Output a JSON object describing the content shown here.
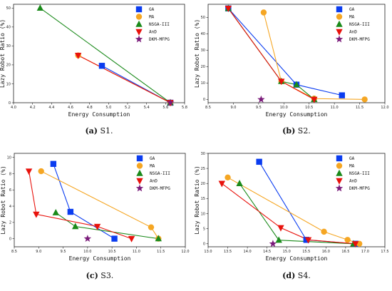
{
  "colors": {
    "GA": "#0a3cf0",
    "MA": "#f5a623",
    "NSGA-III": "#1a8a1a",
    "AnD": "#e8120c",
    "DKM-MFPG": "#7a1b7a"
  },
  "chart_data": [
    {
      "type": "line",
      "caption_label": "(a)",
      "caption_text": "S1.",
      "xlabel": "Energy Consumption",
      "ylabel": "Lazy Robot Ratio (%)",
      "xlim": [
        4.0,
        5.8
      ],
      "ylim": [
        0,
        52
      ],
      "xticks": [
        "4.0",
        "4.2",
        "4.4",
        "4.6",
        "4.8",
        "5.0",
        "5.2",
        "5.4",
        "5.6",
        "5.8"
      ],
      "yticks": [
        "0",
        "10",
        "20",
        "30",
        "40",
        "50"
      ],
      "series": [
        {
          "name": "GA",
          "marker": "square",
          "points": [
            [
              4.93,
              19.5
            ],
            [
              5.65,
              0
            ]
          ]
        },
        {
          "name": "MA",
          "marker": "circle",
          "points": [
            [
              4.68,
              25
            ],
            [
              5.65,
              0
            ]
          ]
        },
        {
          "name": "NSGA-III",
          "marker": "triangle-up",
          "points": [
            [
              4.28,
              50
            ],
            [
              5.65,
              0
            ]
          ]
        },
        {
          "name": "AnD",
          "marker": "triangle-down",
          "points": [
            [
              4.68,
              25
            ],
            [
              5.65,
              0
            ]
          ]
        },
        {
          "name": "DKM-MFPG",
          "marker": "star",
          "points": [
            [
              5.65,
              0
            ]
          ]
        }
      ]
    },
    {
      "type": "line",
      "caption_label": "(b)",
      "caption_text": "S2.",
      "xlabel": "Energy Consumption",
      "ylabel": "Lazy Robot Ratio (%)",
      "xlim": [
        8.5,
        12.0
      ],
      "ylim": [
        -2,
        58
      ],
      "xticks": [
        "8.5",
        "9.0",
        "9.5",
        "10.0",
        "10.5",
        "11.0",
        "11.5",
        "12.0"
      ],
      "yticks": [
        "0",
        "10",
        "20",
        "30",
        "40",
        "50"
      ],
      "series": [
        {
          "name": "GA",
          "marker": "square",
          "points": [
            [
              8.9,
              55.5
            ],
            [
              10.25,
              9
            ],
            [
              11.15,
              2.5
            ]
          ]
        },
        {
          "name": "MA",
          "marker": "circle",
          "points": [
            [
              9.6,
              53
            ],
            [
              9.95,
              11
            ],
            [
              10.6,
              0.5
            ],
            [
              11.6,
              0
            ]
          ]
        },
        {
          "name": "NSGA-III",
          "marker": "triangle-up",
          "points": [
            [
              8.9,
              55.5
            ],
            [
              9.95,
              11
            ],
            [
              10.25,
              9
            ],
            [
              10.6,
              0
            ]
          ]
        },
        {
          "name": "AnD",
          "marker": "triangle-down",
          "points": [
            [
              8.9,
              55.5
            ],
            [
              9.95,
              11
            ],
            [
              10.6,
              0
            ]
          ]
        },
        {
          "name": "DKM-MFPG",
          "marker": "star",
          "points": [
            [
              9.55,
              0
            ]
          ]
        }
      ]
    },
    {
      "type": "line",
      "caption_label": "(c)",
      "caption_text": "S3.",
      "xlabel": "Energy Consumption",
      "ylabel": "Lazy Robot Ratio (%)",
      "xlim": [
        8.5,
        12.0
      ],
      "ylim": [
        -1,
        10.5
      ],
      "xticks": [
        "8.5",
        "9.0",
        "9.5",
        "10.0",
        "10.5",
        "11.0",
        "11.5",
        "12.0"
      ],
      "yticks": [
        "0",
        "2",
        "4",
        "6",
        "8",
        "10"
      ],
      "series": [
        {
          "name": "GA",
          "marker": "square",
          "points": [
            [
              9.3,
              9.2
            ],
            [
              9.65,
              3.3
            ],
            [
              10.55,
              0
            ]
          ]
        },
        {
          "name": "MA",
          "marker": "circle",
          "points": [
            [
              9.05,
              8.3
            ],
            [
              11.3,
              1.4
            ],
            [
              11.45,
              0
            ]
          ]
        },
        {
          "name": "NSGA-III",
          "marker": "triangle-up",
          "points": [
            [
              9.35,
              3.2
            ],
            [
              9.75,
              1.5
            ],
            [
              11.45,
              0
            ]
          ]
        },
        {
          "name": "AnD",
          "marker": "triangle-down",
          "points": [
            [
              8.8,
              8.3
            ],
            [
              8.95,
              3.0
            ],
            [
              10.2,
              1.5
            ],
            [
              10.9,
              0
            ]
          ]
        },
        {
          "name": "DKM-MFPG",
          "marker": "star",
          "points": [
            [
              10.0,
              0
            ]
          ]
        }
      ]
    },
    {
      "type": "line",
      "caption_label": "(d)",
      "caption_text": "S4.",
      "xlabel": "Energy Consumption",
      "ylabel": "Lazy Robot Ratio (%)",
      "xlim": [
        13.0,
        17.5
      ],
      "ylim": [
        -1,
        30
      ],
      "xticks": [
        "13.0",
        "13.5",
        "14.0",
        "14.5",
        "15.0",
        "15.5",
        "16.0",
        "16.5",
        "17.0",
        "17.5"
      ],
      "yticks": [
        "0",
        "5",
        "10",
        "15",
        "20",
        "25",
        "30"
      ],
      "series": [
        {
          "name": "GA",
          "marker": "square",
          "points": [
            [
              14.3,
              27.2
            ],
            [
              15.5,
              1.3
            ],
            [
              16.75,
              0
            ]
          ]
        },
        {
          "name": "MA",
          "marker": "circle",
          "points": [
            [
              13.5,
              22
            ],
            [
              15.95,
              4
            ],
            [
              16.55,
              1.3
            ],
            [
              16.85,
              0
            ]
          ]
        },
        {
          "name": "NSGA-III",
          "marker": "triangle-up",
          "points": [
            [
              13.8,
              20
            ],
            [
              14.8,
              1.2
            ],
            [
              16.7,
              0
            ]
          ]
        },
        {
          "name": "AnD",
          "marker": "triangle-down",
          "points": [
            [
              13.35,
              20
            ],
            [
              14.85,
              5.3
            ],
            [
              15.55,
              1.3
            ],
            [
              16.75,
              0
            ]
          ]
        },
        {
          "name": "DKM-MFPG",
          "marker": "star",
          "points": [
            [
              14.65,
              0
            ]
          ]
        }
      ]
    }
  ]
}
